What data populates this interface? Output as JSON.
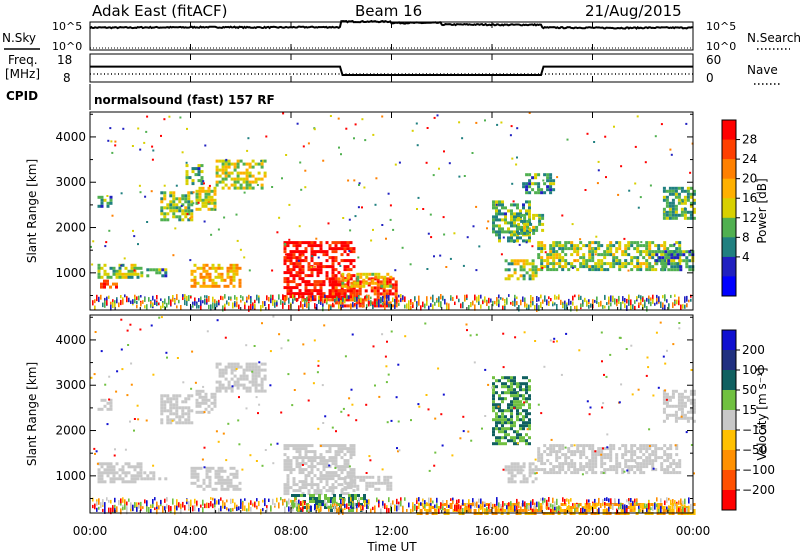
{
  "header": {
    "station": "Adak East (fitACF)",
    "beam": "Beam 16",
    "date": "21/Aug/2015"
  },
  "side_labels": {
    "nsky": "N.Sky",
    "nsearch": "N.Search",
    "freq_line1": "Freq.",
    "freq_line2": "[MHz]",
    "nave": "Nave",
    "cpid": "CPID",
    "scale_left_top": "10^5",
    "scale_left_bottom": "10^0",
    "scale_right_top": "10^5",
    "scale_right_bottom": "10^0",
    "freq_hi": "18",
    "freq_lo": "8",
    "nave_hi": "60",
    "nave_lo": "0"
  },
  "cpid_text": "normalsound (fast) 157 RF",
  "colorbars": {
    "power": {
      "title": "Power [dB]",
      "ticks": [
        "28",
        "24",
        "20",
        "16",
        "12",
        "8",
        "4"
      ],
      "colors": [
        "#ff0000",
        "#ff4000",
        "#ff8000",
        "#ffb000",
        "#d8d000",
        "#50b050",
        "#208080",
        "#2020c0",
        "#0000ff"
      ]
    },
    "velocity": {
      "title": "Velocity [m s⁻¹]",
      "ticks": [
        "200",
        "100",
        "50",
        "15",
        "−15",
        "−50",
        "−100",
        "−200"
      ],
      "colors": [
        "#1010d0",
        "#203080",
        "#106060",
        "#70c040",
        "#c8c8c8",
        "#ffc000",
        "#ff9000",
        "#ff5000",
        "#ff0000"
      ]
    }
  },
  "axes": {
    "ylabel": "Slant Range [km]",
    "xlabel": "Time UT",
    "x_ticks": [
      "00:00",
      "04:00",
      "08:00",
      "12:00",
      "16:00",
      "20:00",
      "00:00"
    ],
    "y_ticks": [
      "1000",
      "2000",
      "3000",
      "4000"
    ]
  },
  "chart_data": [
    {
      "type": "line",
      "title": "",
      "xlabel": "",
      "ylabel": "N.Sky",
      "x": [
        0,
        2,
        4,
        6,
        8,
        9.9,
        10,
        12,
        14,
        16,
        17.9,
        18,
        20,
        22,
        24
      ],
      "series": [
        {
          "name": "N.Sky",
          "values": [
            10000,
            11000,
            12000,
            11000,
            12000,
            11500,
            120000,
            70000,
            35000,
            32000,
            31000,
            10000,
            9000,
            9500,
            10000
          ]
        }
      ],
      "ylim": [
        1,
        100000
      ]
    },
    {
      "type": "line",
      "title": "",
      "xlabel": "",
      "ylabel": "Freq. [MHz]",
      "x": [
        0,
        9.95,
        10.05,
        17.95,
        18.05,
        24
      ],
      "series": [
        {
          "name": "Freq.",
          "values": [
            13.5,
            13.5,
            10.5,
            10.5,
            13.5,
            13.5
          ]
        },
        {
          "name": "Nave",
          "values": [
            18,
            18,
            18,
            18,
            18,
            18
          ]
        }
      ],
      "ylim": [
        8,
        18
      ]
    },
    {
      "type": "heatmap",
      "title": "",
      "xlabel": "Time UT",
      "ylabel": "Slant Range [km]",
      "xlim": [
        0,
        24
      ],
      "ylim": [
        180,
        4550
      ],
      "colorbar": "Power [dB]",
      "regions": [
        {
          "t": [
            0.3,
            2.0
          ],
          "r": [
            900,
            1200
          ],
          "value": 12
        },
        {
          "t": [
            0.4,
            1.0
          ],
          "r": [
            700,
            850
          ],
          "value": 24
        },
        {
          "t": [
            2.0,
            3.0
          ],
          "r": [
            950,
            1100
          ],
          "value": 8
        },
        {
          "t": [
            4.0,
            6.0
          ],
          "r": [
            700,
            1200
          ],
          "value": 18
        },
        {
          "t": [
            0.3,
            0.8
          ],
          "r": [
            2500,
            2700
          ],
          "value": 8
        },
        {
          "t": [
            2.8,
            4.0
          ],
          "r": [
            2200,
            2800
          ],
          "value": 12
        },
        {
          "t": [
            4.2,
            5.0
          ],
          "r": [
            2400,
            2900
          ],
          "value": 14
        },
        {
          "t": [
            5.0,
            7.0
          ],
          "r": [
            2900,
            3500
          ],
          "value": 14
        },
        {
          "t": [
            3.8,
            4.5
          ],
          "r": [
            3000,
            3400
          ],
          "value": 10
        },
        {
          "t": [
            7.7,
            10.5
          ],
          "r": [
            400,
            1700
          ],
          "value": 28
        },
        {
          "t": [
            9.5,
            12.2
          ],
          "r": [
            250,
            900
          ],
          "value": 26
        },
        {
          "t": [
            10.0,
            12.0
          ],
          "r": [
            700,
            1000
          ],
          "value": 16
        },
        {
          "t": [
            16.0,
            17.5
          ],
          "r": [
            1700,
            2600
          ],
          "value": 10
        },
        {
          "t": [
            17.0,
            18.0
          ],
          "r": [
            1900,
            2300
          ],
          "value": 12
        },
        {
          "t": [
            16.5,
            17.7
          ],
          "r": [
            900,
            1300
          ],
          "value": 12
        },
        {
          "t": [
            17.8,
            23.5
          ],
          "r": [
            1100,
            1700
          ],
          "value": 12
        },
        {
          "t": [
            22.5,
            24.0
          ],
          "r": [
            1100,
            1500
          ],
          "value": 8
        },
        {
          "t": [
            22.8,
            24.0
          ],
          "r": [
            2200,
            2900
          ],
          "value": 10
        },
        {
          "t": [
            17.2,
            18.5
          ],
          "r": [
            2800,
            3200
          ],
          "value": 8
        }
      ]
    },
    {
      "type": "heatmap",
      "title": "",
      "xlabel": "Time UT",
      "ylabel": "Slant Range [km]",
      "xlim": [
        0,
        24
      ],
      "ylim": [
        180,
        4550
      ],
      "colorbar": "Velocity [m s⁻¹]",
      "regions": [
        {
          "t": [
            0.3,
            2.0
          ],
          "r": [
            900,
            1300
          ],
          "value": 0
        },
        {
          "t": [
            2.0,
            3.0
          ],
          "r": [
            950,
            1100
          ],
          "value": 0
        },
        {
          "t": [
            4.0,
            6.0
          ],
          "r": [
            700,
            1200
          ],
          "value": 0
        },
        {
          "t": [
            0.3,
            0.8
          ],
          "r": [
            2500,
            2700
          ],
          "value": 0
        },
        {
          "t": [
            2.8,
            4.0
          ],
          "r": [
            2200,
            2800
          ],
          "value": 0
        },
        {
          "t": [
            4.2,
            5.0
          ],
          "r": [
            2400,
            2900
          ],
          "value": 0
        },
        {
          "t": [
            5.0,
            7.0
          ],
          "r": [
            2900,
            3500
          ],
          "value": 0
        },
        {
          "t": [
            7.7,
            10.5
          ],
          "r": [
            600,
            1700
          ],
          "value": 0
        },
        {
          "t": [
            8.0,
            11.0
          ],
          "r": [
            250,
            600
          ],
          "value": 30
        },
        {
          "t": [
            10.0,
            12.0
          ],
          "r": [
            700,
            1000
          ],
          "value": 0
        },
        {
          "t": [
            16.0,
            17.5
          ],
          "r": [
            1700,
            3200
          ],
          "value": 30
        },
        {
          "t": [
            16.5,
            17.7
          ],
          "r": [
            900,
            1300
          ],
          "value": 0
        },
        {
          "t": [
            17.8,
            23.5
          ],
          "r": [
            1100,
            1700
          ],
          "value": 0
        },
        {
          "t": [
            22.8,
            24.0
          ],
          "r": [
            2200,
            2900
          ],
          "value": 0
        },
        {
          "t": [
            13.0,
            24.0
          ],
          "r": [
            200,
            400
          ],
          "value": -50
        }
      ]
    }
  ]
}
